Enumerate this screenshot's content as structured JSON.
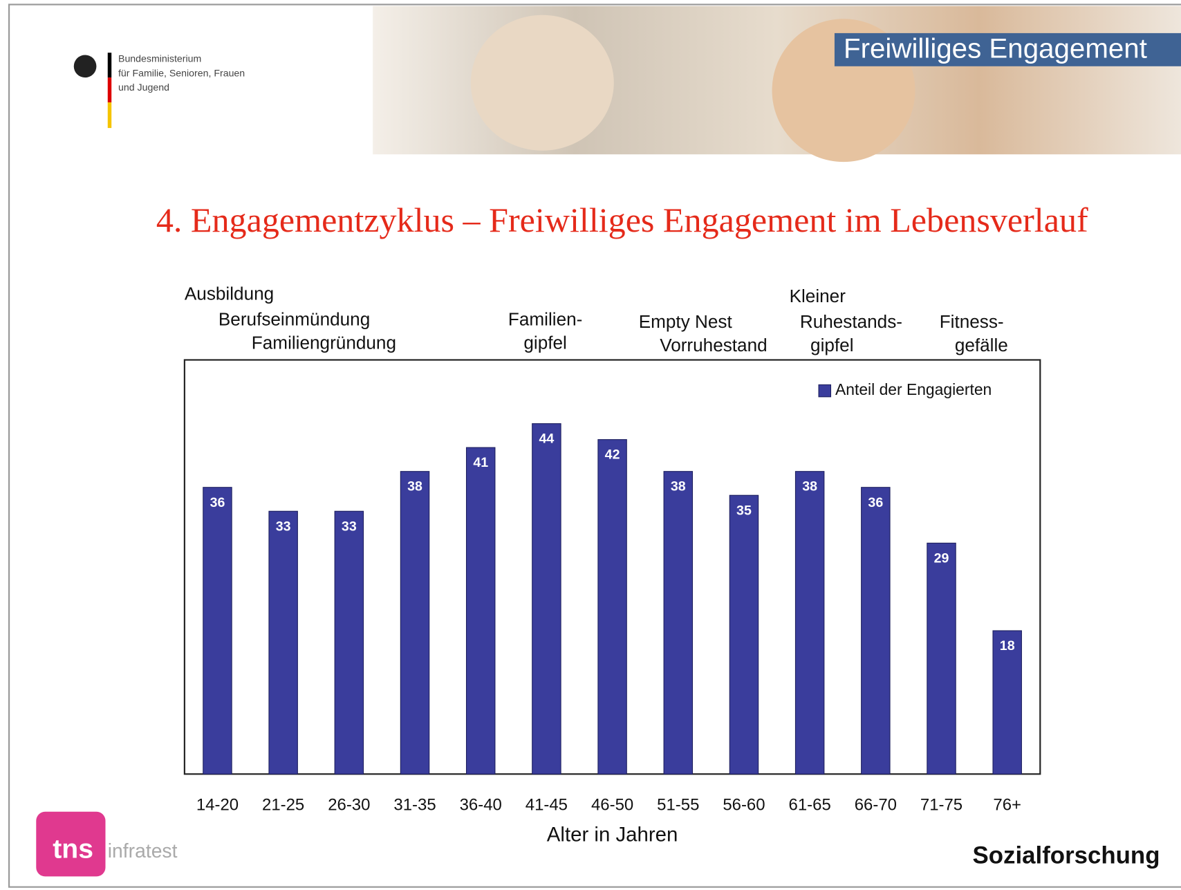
{
  "header": {
    "banner": "Freiwilliges Engagement",
    "ministry": [
      "Bundesministerium",
      "für Familie, Senioren, Frauen",
      "und Jugend"
    ]
  },
  "footer": {
    "logo": "tns",
    "logo_suffix": "infratest",
    "department": "Sozialforschung"
  },
  "chart_data": {
    "type": "bar",
    "title": "4. Engagementzyklus – Freiwilliges Engagement im Lebensverlauf",
    "annotations": [
      "Ausbildung",
      "Berufseinmündung",
      "Familiengründung",
      "Familien-",
      "gipfel",
      "Empty Nest",
      "Vorruhestand",
      "Kleiner",
      "Ruhestands-",
      "gipfel",
      "Fitness-",
      "gefälle"
    ],
    "x_label": "Alter in Jahren",
    "categories": [
      "14-20",
      "21-25",
      "26-30",
      "31-35",
      "36-40",
      "41-45",
      "46-50",
      "51-55",
      "56-60",
      "61-65",
      "66-70",
      "71-75",
      "76+"
    ],
    "series": [
      {
        "name": "Anteil der Engagierten",
        "color": "#3a3d9c",
        "values": [
          36,
          33,
          33,
          38,
          41,
          44,
          42,
          38,
          35,
          38,
          36,
          29,
          18
        ]
      }
    ],
    "ylim": [
      0,
      52
    ],
    "legend": "upper right"
  }
}
